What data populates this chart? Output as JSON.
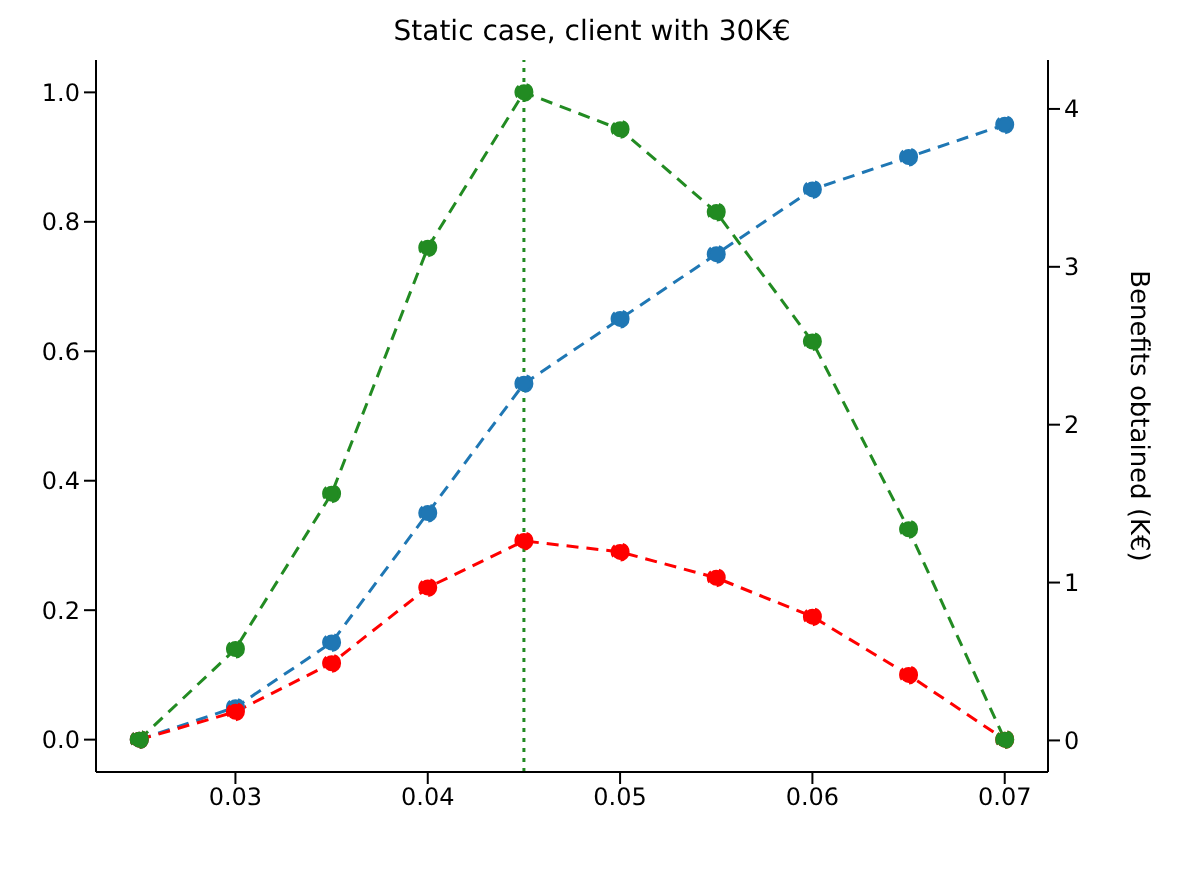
{
  "chart_data": {
    "type": "line",
    "title": "Static case, client with 30K€",
    "y2label": "Benefits obtained (K€)",
    "x": [
      0.025,
      0.03,
      0.035,
      0.04,
      0.045,
      0.05,
      0.055,
      0.06,
      0.065,
      0.07
    ],
    "series": [
      {
        "color": "#1f77b4",
        "values": [
          0,
          0.05,
          0.15,
          0.35,
          0.55,
          0.65,
          0.75,
          0.85,
          0.9,
          0.95
        ]
      },
      {
        "color": "#ff0000",
        "values": [
          0,
          0.043,
          0.118,
          0.235,
          0.307,
          0.29,
          0.25,
          0.19,
          0.1,
          0
        ]
      },
      {
        "color": "#228b22",
        "values": [
          0,
          0.14,
          0.38,
          0.76,
          1.0,
          0.943,
          0.815,
          0.615,
          0.325,
          0
        ]
      }
    ],
    "xlim": [
      0.02275,
      0.07225
    ],
    "xticks": [
      0.03,
      0.04,
      0.05,
      0.06,
      0.07
    ],
    "ylim": [
      -0.05,
      1.05
    ],
    "yticks": [
      {
        "value": 0,
        "label": "0.0"
      },
      {
        "value": 0.2,
        "label": "0.2"
      },
      {
        "value": 0.4,
        "label": "0.4"
      },
      {
        "value": 0.6,
        "label": "0.6"
      },
      {
        "value": 0.8,
        "label": "0.8"
      },
      {
        "value": 1,
        "label": "1.0"
      }
    ],
    "y2lim": [
      -0.2,
      4.31
    ],
    "y2ticks": [
      0,
      1,
      2,
      3,
      4
    ],
    "ref_lines": [
      {
        "axis": "x",
        "value": 0.045,
        "color": "#228b22",
        "line_style": "dotted"
      }
    ],
    "marker": "circle",
    "line_style": "dashed"
  }
}
